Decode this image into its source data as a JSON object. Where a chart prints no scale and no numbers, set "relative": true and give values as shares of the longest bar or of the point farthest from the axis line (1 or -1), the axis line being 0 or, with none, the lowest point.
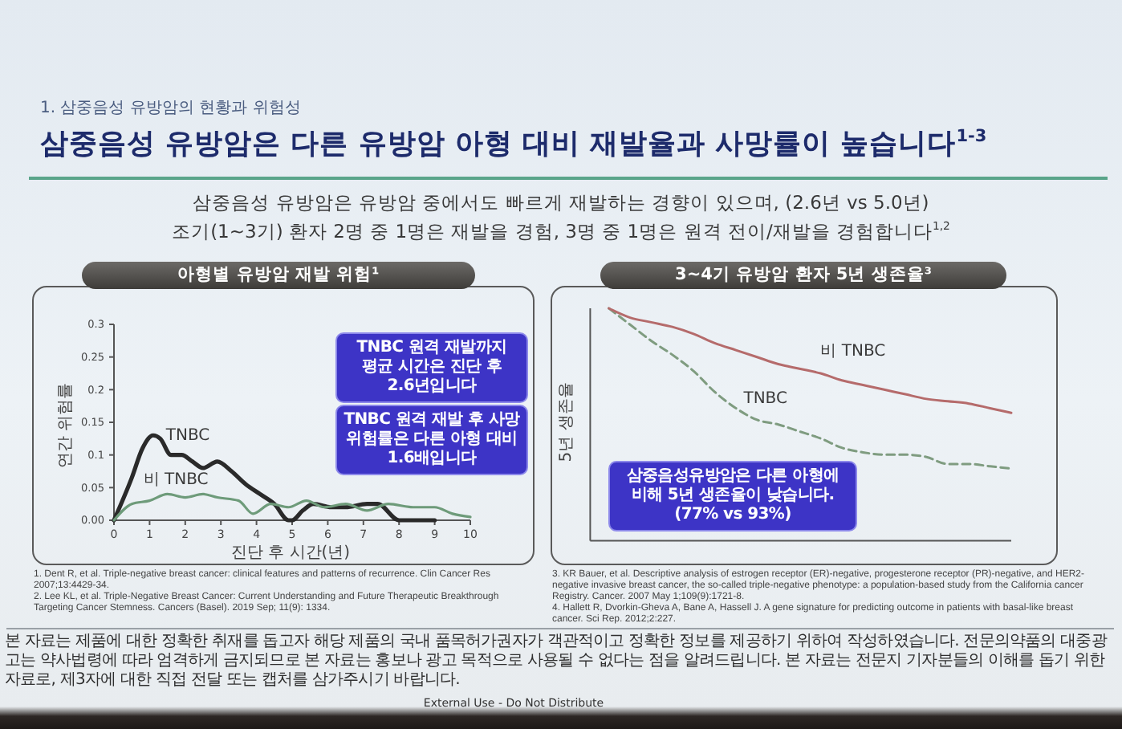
{
  "chart_data": [
    {
      "type": "other",
      "title": "삼중음성 유방암은 다른 유방암 아형 대비 재발율과 사망률이 높습니다$^{1-3}$",
      "annotations": [
        "1. 삼중음성 유방암의 현황과 위험성",
        "삼중음성 유방암은 유방암 중에서도 빠르게 재발하는 경향이 있으며, (2.6년 vs 5.0년)",
        "조기(1~3기) 환자 2명 중 1명은 재발을 경험, 3명 중 1명은 원격 전이/재발을 경험합니다$^{1,2}$"
      ]
    },
    {
      "type": "line",
      "title": "아형별 유방암 재발 위험¹",
      "xlabel": "진단 후 시간(년)",
      "ylabel": "연간 위험률",
      "xlim": [
        0,
        10
      ],
      "xticks": [
        0,
        1,
        2,
        3,
        4,
        5,
        6,
        7,
        8,
        9,
        10
      ],
      "ylim": [
        0,
        0.3
      ],
      "yticks": [
        {
          "value": 0,
          "label": "0.00"
        },
        0.05,
        0.1,
        0.15,
        0.2,
        0.25,
        0.3
      ],
      "series": [
        {
          "name": "TNBC",
          "color": "#2a2a2a",
          "x": [
            0,
            0.5,
            0.8,
            1.1,
            1.3,
            1.6,
            1.9,
            2.2,
            2.5,
            2.9,
            3.3,
            3.7,
            4.1,
            4.5,
            4.9,
            5.0,
            5.3,
            5.6,
            6.1,
            6.5,
            7.1,
            7.4,
            8.0,
            9.0
          ],
          "values": [
            0,
            0.065,
            0.11,
            0.13,
            0.125,
            0.1,
            0.1,
            0.09,
            0.08,
            0.09,
            0.075,
            0.055,
            0.04,
            0.025,
            0,
            0,
            0.015,
            0.025,
            0.02,
            0.02,
            0.025,
            0.025,
            0,
            0
          ]
        },
        {
          "name": "비 TNBC",
          "color": "#6e9b7a",
          "x": [
            0,
            0.5,
            1.0,
            1.5,
            2.0,
            2.5,
            2.9,
            3.5,
            3.9,
            4.4,
            4.9,
            5.4,
            5.9,
            6.5,
            7.1,
            7.7,
            8.4,
            9.0,
            9.5,
            10
          ],
          "values": [
            0,
            0.025,
            0.03,
            0.04,
            0.035,
            0.04,
            0.035,
            0.03,
            0.01,
            0.025,
            0.02,
            0.03,
            0.02,
            0.025,
            0.015,
            0.025,
            0.02,
            0.02,
            0.01,
            0.005
          ]
        }
      ],
      "annotations": [
        "TNBC 원격 재발까지 평균 시간은 진단 후 2.6년입니다",
        "TNBC 원격 재발 후 사망 위험률은 다른 아형 대비 1.6배입니다",
        "1. Dent R, et al. Triple-negative breast cancer: clinical features and patterns of recurrence. Clin Cancer Res 2007;13:4429-34.",
        "2. Lee KL, et al. Triple-Negative Breast Cancer: Current Understanding and Future Therapeutic Breakthrough Targeting Cancer Stemness. Cancers (Basel). 2019 Sep; 11(9): 1334."
      ]
    },
    {
      "type": "line",
      "relative": true,
      "title": "3~4기 유방암 환자 5년 생존율³",
      "ylabel": "5년 생존율",
      "categories": [
        null,
        null,
        null,
        null,
        null,
        null,
        null,
        null,
        null,
        null,
        null,
        null,
        null,
        null,
        null,
        null,
        null,
        null,
        null,
        null
      ],
      "series": [
        {
          "name": "TNBC",
          "color": "#7f9c80",
          "line_style": "dashed",
          "values": [
            1,
            0.93,
            0.86,
            0.8,
            0.73,
            0.64,
            0.57,
            0.52,
            0.5,
            0.47,
            0.44,
            0.4,
            0.38,
            0.37,
            0.37,
            0.36,
            0.33,
            0.33,
            0.32,
            0.31
          ]
        },
        {
          "name": "비 TNBC",
          "color": "#b56b6b",
          "values": [
            1,
            0.96,
            0.94,
            0.92,
            0.89,
            0.85,
            0.82,
            0.79,
            0.76,
            0.74,
            0.72,
            0.69,
            0.67,
            0.65,
            0.63,
            0.61,
            0.6,
            0.59,
            0.57,
            0.55
          ]
        }
      ],
      "annotations": [
        "삼중음성유방암은 다른 아형에 비해 5년 생존율이 낮습니다. (77% vs 93%)",
        "3. KR Bauer, et al. Descriptive analysis of estrogen receptor (ER)-negative, progesterone receptor (PR)-negative, and HER2-negative invasive breast cancer, the so-called triple-negative phenotype: a population-based study from the California cancer Registry. Cancer. 2007 May 1;109(9):1721-8.",
        "4. Hallett R, Dvorkin-Gheva A, Bane A, Hassell J. A gene signature for predicting outcome in patients with basal-like breast cancer. Sci Rep. 2012;2:227."
      ]
    },
    {
      "type": "other",
      "annotations": [
        "본 자료는 제품에 대한 정확한 취재를 돕고자 해당 제품의 국내 품목허가권자가 객관적이고 정확한 정보를 제공하기 위하여 작성하였습니다. 전문의약품의 대중광고는 약사법령에 따라 엄격하게 금지되므로 본 자료는 홍보나 광고 목적으로 사용될 수 없다는 점을 알려드립니다. 본 자료는 전문지 기자분들의 이해를 돕기 위한 자료로, 제3자에 대한 직접 전달 또는 캡처를 삼가주시기 바랍니다.",
        "External Use - Do Not Distribute"
      ]
    }
  ]
}
